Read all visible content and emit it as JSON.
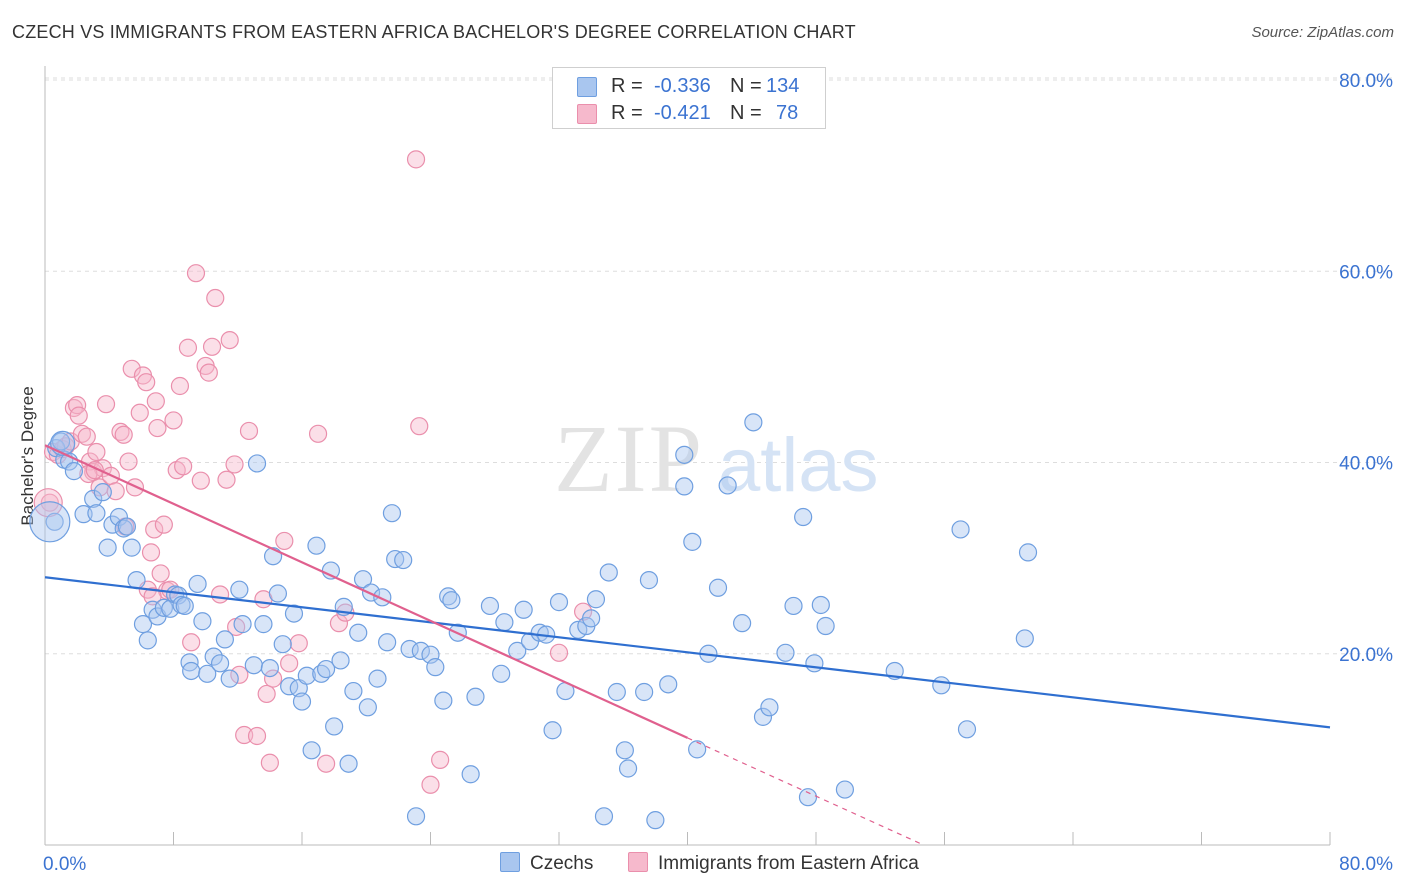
{
  "title": "CZECH VS IMMIGRANTS FROM EASTERN AFRICA BACHELOR'S DEGREE CORRELATION CHART",
  "source": "Source: ZipAtlas.com",
  "watermark": {
    "zip": "ZIP",
    "atlas": "atlas"
  },
  "legend": {
    "r_label": "R =",
    "n_label": "N =",
    "rows": [
      {
        "series": "Czechs",
        "r": "-0.336",
        "n": "134"
      },
      {
        "series": "Immigrants from Eastern Africa",
        "r": "-0.421",
        "n": "78"
      }
    ]
  },
  "colors": {
    "czechs_fill": "#a9c6ef",
    "czechs_stroke": "#6f9fe0",
    "czechs_line": "#2f6fd0",
    "immig_fill": "#f6b9cc",
    "immig_stroke": "#ea8fac",
    "immig_line": "#e0608e",
    "axis_text": "#3b73d1",
    "grid": "#dddddd"
  },
  "chart_data": {
    "type": "scatter",
    "title": "CZECH VS IMMIGRANTS FROM EASTERN AFRICA BACHELOR'S DEGREE CORRELATION CHART",
    "xlabel": "",
    "ylabel": "Bachelor's Degree",
    "xlim": [
      0,
      80
    ],
    "ylim": [
      0,
      80
    ],
    "x_tick_labels": [
      "0.0%",
      "80.0%"
    ],
    "y_tick_labels": [
      "20.0%",
      "40.0%",
      "60.0%",
      "80.0%"
    ],
    "y_ticks": [
      20,
      40,
      60,
      80
    ],
    "grid": true,
    "legend_position": "bottom-center",
    "series": [
      {
        "name": "Czechs",
        "trend": {
          "x0": 0,
          "y0": 28.0,
          "x1": 80,
          "y1": 12.3
        },
        "points": [
          [
            0.6,
            33.8
          ],
          [
            0.7,
            41.5
          ],
          [
            1.0,
            42.2
          ],
          [
            1.2,
            40.3
          ],
          [
            1.5,
            40.1
          ],
          [
            1.8,
            39.1
          ],
          [
            2.4,
            34.6
          ],
          [
            3.0,
            36.2
          ],
          [
            3.2,
            34.7
          ],
          [
            3.6,
            36.9
          ],
          [
            3.9,
            31.1
          ],
          [
            4.2,
            33.5
          ],
          [
            4.6,
            34.3
          ],
          [
            4.9,
            33.1
          ],
          [
            5.1,
            33.3
          ],
          [
            5.4,
            31.1
          ],
          [
            5.7,
            27.7
          ],
          [
            6.1,
            23.1
          ],
          [
            6.4,
            21.4
          ],
          [
            6.7,
            24.6
          ],
          [
            7.0,
            23.9
          ],
          [
            7.4,
            24.8
          ],
          [
            7.8,
            24.7
          ],
          [
            8.1,
            26.2
          ],
          [
            8.3,
            26.1
          ],
          [
            8.5,
            25.1
          ],
          [
            8.7,
            25.0
          ],
          [
            9.0,
            19.1
          ],
          [
            9.1,
            18.2
          ],
          [
            9.5,
            27.3
          ],
          [
            9.8,
            23.4
          ],
          [
            10.1,
            17.9
          ],
          [
            10.5,
            19.7
          ],
          [
            10.9,
            19.0
          ],
          [
            11.2,
            21.5
          ],
          [
            11.5,
            17.4
          ],
          [
            12.1,
            26.7
          ],
          [
            12.3,
            23.1
          ],
          [
            13.0,
            18.8
          ],
          [
            13.2,
            39.9
          ],
          [
            13.6,
            23.1
          ],
          [
            14.0,
            18.5
          ],
          [
            14.2,
            30.2
          ],
          [
            14.5,
            26.3
          ],
          [
            14.8,
            21.0
          ],
          [
            15.2,
            16.6
          ],
          [
            15.5,
            24.2
          ],
          [
            15.8,
            16.4
          ],
          [
            16.0,
            15.0
          ],
          [
            16.3,
            17.7
          ],
          [
            16.6,
            9.9
          ],
          [
            16.9,
            31.3
          ],
          [
            17.2,
            17.9
          ],
          [
            17.5,
            18.4
          ],
          [
            17.8,
            28.7
          ],
          [
            18.0,
            12.4
          ],
          [
            18.4,
            19.3
          ],
          [
            18.6,
            24.9
          ],
          [
            18.9,
            8.5
          ],
          [
            19.2,
            16.1
          ],
          [
            19.5,
            22.2
          ],
          [
            19.8,
            27.8
          ],
          [
            20.1,
            14.4
          ],
          [
            20.3,
            26.4
          ],
          [
            20.7,
            17.4
          ],
          [
            21.0,
            25.9
          ],
          [
            21.3,
            21.2
          ],
          [
            21.6,
            34.7
          ],
          [
            21.8,
            29.9
          ],
          [
            22.3,
            29.8
          ],
          [
            22.7,
            20.5
          ],
          [
            23.1,
            3.0
          ],
          [
            23.4,
            20.3
          ],
          [
            24.0,
            19.9
          ],
          [
            24.3,
            18.6
          ],
          [
            24.8,
            15.1
          ],
          [
            25.1,
            26.0
          ],
          [
            25.3,
            25.6
          ],
          [
            25.7,
            22.2
          ],
          [
            26.5,
            7.4
          ],
          [
            26.8,
            15.5
          ],
          [
            27.7,
            25.0
          ],
          [
            28.4,
            17.9
          ],
          [
            28.6,
            23.3
          ],
          [
            29.4,
            20.3
          ],
          [
            29.8,
            24.6
          ],
          [
            30.2,
            21.3
          ],
          [
            30.8,
            22.2
          ],
          [
            31.2,
            22.0
          ],
          [
            31.6,
            12.0
          ],
          [
            32.0,
            25.4
          ],
          [
            32.4,
            16.1
          ],
          [
            33.2,
            22.5
          ],
          [
            33.7,
            22.9
          ],
          [
            34.0,
            23.7
          ],
          [
            34.3,
            25.7
          ],
          [
            34.8,
            3.0
          ],
          [
            35.1,
            28.5
          ],
          [
            35.6,
            16.0
          ],
          [
            36.1,
            9.9
          ],
          [
            36.3,
            8.0
          ],
          [
            37.3,
            16.0
          ],
          [
            37.6,
            27.7
          ],
          [
            38.0,
            2.6
          ],
          [
            38.8,
            16.8
          ],
          [
            39.8,
            37.5
          ],
          [
            39.8,
            40.8
          ],
          [
            40.3,
            31.7
          ],
          [
            40.6,
            10.0
          ],
          [
            41.3,
            20.0
          ],
          [
            41.9,
            26.9
          ],
          [
            42.5,
            37.6
          ],
          [
            43.4,
            23.2
          ],
          [
            44.1,
            44.2
          ],
          [
            44.7,
            13.4
          ],
          [
            45.1,
            14.4
          ],
          [
            46.1,
            20.1
          ],
          [
            46.6,
            25.0
          ],
          [
            47.2,
            34.3
          ],
          [
            47.5,
            5.0
          ],
          [
            47.9,
            19.0
          ],
          [
            48.3,
            25.1
          ],
          [
            48.6,
            22.9
          ],
          [
            49.8,
            5.8
          ],
          [
            52.9,
            18.2
          ],
          [
            55.8,
            16.7
          ],
          [
            57.0,
            33.0
          ],
          [
            57.4,
            12.1
          ],
          [
            61.0,
            21.6
          ],
          [
            61.2,
            30.6
          ]
        ]
      },
      {
        "name": "Immigrants from Eastern Africa",
        "trend": {
          "x0": 0,
          "y0": 41.8,
          "x1": 40.0,
          "y1": 11.2
        },
        "trend_dashed": {
          "x0": 40.0,
          "y0": 11.2,
          "x1": 54.7,
          "y1": 0
        },
        "points": [
          [
            0.3,
            35.8
          ],
          [
            0.5,
            41.1
          ],
          [
            0.8,
            40.8
          ],
          [
            1.1,
            41.4
          ],
          [
            1.3,
            41.7
          ],
          [
            1.6,
            42.2
          ],
          [
            1.8,
            45.7
          ],
          [
            2.0,
            46.0
          ],
          [
            2.1,
            44.9
          ],
          [
            2.3,
            43.0
          ],
          [
            2.6,
            42.7
          ],
          [
            2.8,
            40.1
          ],
          [
            3.0,
            39.0
          ],
          [
            3.2,
            41.1
          ],
          [
            3.4,
            37.4
          ],
          [
            3.6,
            39.4
          ],
          [
            3.8,
            46.1
          ],
          [
            4.1,
            38.6
          ],
          [
            4.4,
            37.0
          ],
          [
            4.7,
            43.2
          ],
          [
            4.9,
            42.9
          ],
          [
            5.2,
            40.1
          ],
          [
            5.4,
            49.8
          ],
          [
            5.6,
            37.4
          ],
          [
            5.9,
            45.2
          ],
          [
            6.1,
            49.1
          ],
          [
            6.3,
            48.4
          ],
          [
            6.4,
            26.7
          ],
          [
            6.6,
            30.6
          ],
          [
            6.8,
            33.0
          ],
          [
            6.9,
            46.4
          ],
          [
            7.0,
            43.6
          ],
          [
            7.2,
            28.4
          ],
          [
            7.4,
            33.5
          ],
          [
            7.6,
            26.6
          ],
          [
            7.8,
            26.7
          ],
          [
            8.0,
            44.4
          ],
          [
            8.2,
            39.2
          ],
          [
            8.4,
            48.0
          ],
          [
            8.6,
            39.6
          ],
          [
            8.9,
            52.0
          ],
          [
            9.1,
            21.2
          ],
          [
            9.4,
            59.8
          ],
          [
            9.7,
            38.1
          ],
          [
            10.0,
            50.1
          ],
          [
            10.2,
            49.4
          ],
          [
            10.4,
            52.1
          ],
          [
            10.6,
            57.2
          ],
          [
            10.9,
            26.2
          ],
          [
            11.3,
            38.2
          ],
          [
            11.5,
            52.8
          ],
          [
            11.8,
            39.8
          ],
          [
            11.9,
            22.8
          ],
          [
            12.1,
            17.8
          ],
          [
            12.4,
            11.5
          ],
          [
            12.7,
            43.3
          ],
          [
            13.2,
            11.4
          ],
          [
            13.6,
            25.7
          ],
          [
            13.8,
            15.8
          ],
          [
            14.0,
            8.6
          ],
          [
            14.2,
            17.4
          ],
          [
            14.9,
            31.8
          ],
          [
            15.2,
            19.0
          ],
          [
            15.8,
            21.1
          ],
          [
            17.0,
            43.0
          ],
          [
            17.5,
            8.5
          ],
          [
            18.3,
            23.2
          ],
          [
            18.7,
            24.3
          ],
          [
            23.1,
            71.7
          ],
          [
            23.3,
            43.8
          ],
          [
            24.0,
            6.3
          ],
          [
            24.6,
            8.9
          ],
          [
            32.0,
            20.1
          ],
          [
            33.5,
            24.4
          ],
          [
            2.7,
            38.8
          ],
          [
            3.1,
            39.2
          ],
          [
            5.0,
            33.3
          ],
          [
            6.7,
            26.0
          ]
        ]
      }
    ]
  }
}
